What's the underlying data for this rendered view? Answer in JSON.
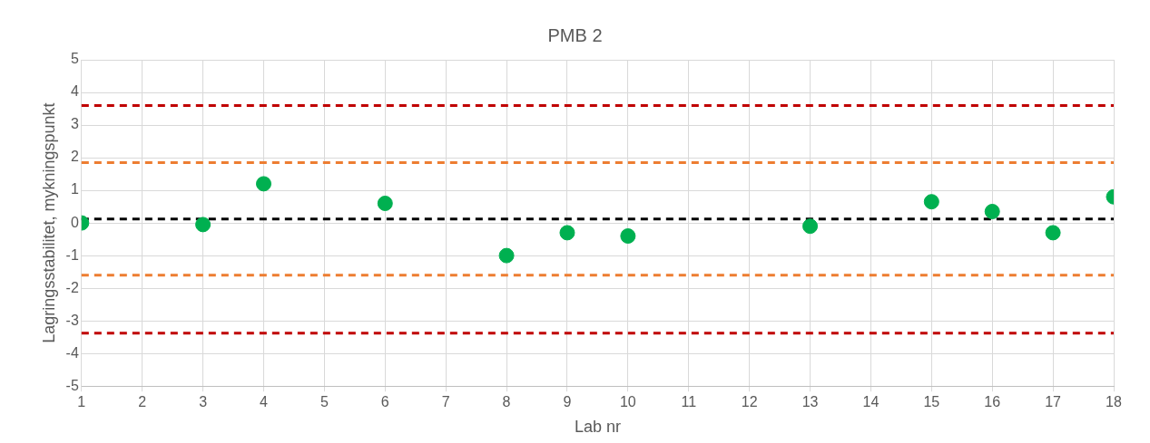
{
  "chart_data": {
    "type": "scatter",
    "title": "PMB 2",
    "xlabel": "Lab nr",
    "ylabel": "Lagringsstabilitet, mykningspunkt",
    "x": [
      1,
      3,
      4,
      6,
      8,
      9,
      10,
      13,
      15,
      16,
      17,
      18
    ],
    "series": [
      {
        "color": "#00b050",
        "values": [
          0.0,
          -0.05,
          1.2,
          0.6,
          -1.0,
          -0.3,
          -0.4,
          -0.1,
          0.65,
          0.35,
          -0.3,
          0.8
        ]
      }
    ],
    "xlim": [
      1,
      18
    ],
    "xticks": [
      1,
      2,
      3,
      4,
      5,
      6,
      7,
      8,
      9,
      10,
      11,
      12,
      13,
      14,
      15,
      16,
      17,
      18
    ],
    "ylim": [
      -5,
      5
    ],
    "yticks": [
      -5,
      -4,
      -3,
      -2,
      -1,
      0,
      1,
      2,
      3,
      4,
      5
    ],
    "ref_lines": [
      {
        "axis": "y",
        "value": 3.6,
        "color": "#c00000",
        "line_style": "dashed"
      },
      {
        "axis": "y",
        "value": 1.85,
        "color": "#ed7d31",
        "line_style": "dashed"
      },
      {
        "axis": "y",
        "value": 0.12,
        "color": "#000000",
        "line_style": "dashed"
      },
      {
        "axis": "y",
        "value": -1.6,
        "color": "#ed7d31",
        "line_style": "dashed"
      },
      {
        "axis": "y",
        "value": -3.38,
        "color": "#c00000",
        "line_style": "dashed"
      }
    ],
    "grid": true,
    "legend": false,
    "marker": "circle"
  }
}
